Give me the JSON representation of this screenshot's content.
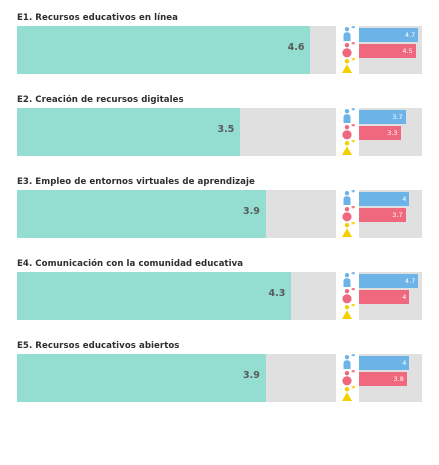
{
  "chart_data": {
    "type": "bar",
    "orientation": "horizontal",
    "xlim": [
      0,
      5
    ],
    "grid": false,
    "colors": {
      "overall": "#93ded0",
      "track": "#e0e0e0",
      "male": "#6cb4e8",
      "female": "#f0687e",
      "other": "#f5d000"
    },
    "items": [
      {
        "title": "E1. Recursos educativos en línea",
        "value": 4.6,
        "value_label": "4.6",
        "male": 4.7,
        "male_label": "4.7",
        "female": 4.5,
        "female_label": "4.5"
      },
      {
        "title": "E2. Creación de recursos digitales",
        "value": 3.5,
        "value_label": "3.5",
        "male": 3.7,
        "male_label": "3.7",
        "female": 3.3,
        "female_label": "3.3"
      },
      {
        "title": "E3. Empleo de entornos virtuales de aprendizaje",
        "value": 3.9,
        "value_label": "3.9",
        "male": 4.0,
        "male_label": "4",
        "female": 3.7,
        "female_label": "3.7"
      },
      {
        "title": "E4. Comunicación con la comunidad educativa",
        "value": 4.3,
        "value_label": "4.3",
        "male": 4.7,
        "male_label": "4.7",
        "female": 4.0,
        "female_label": "4"
      },
      {
        "title": "E5. Recursos educativos abiertos",
        "value": 3.9,
        "value_label": "3.9",
        "male": 4.0,
        "male_label": "4",
        "female": 3.8,
        "female_label": "3.8"
      }
    ],
    "icons": [
      "male-person-icon",
      "female-person-icon",
      "other-gender-person-icon"
    ]
  }
}
